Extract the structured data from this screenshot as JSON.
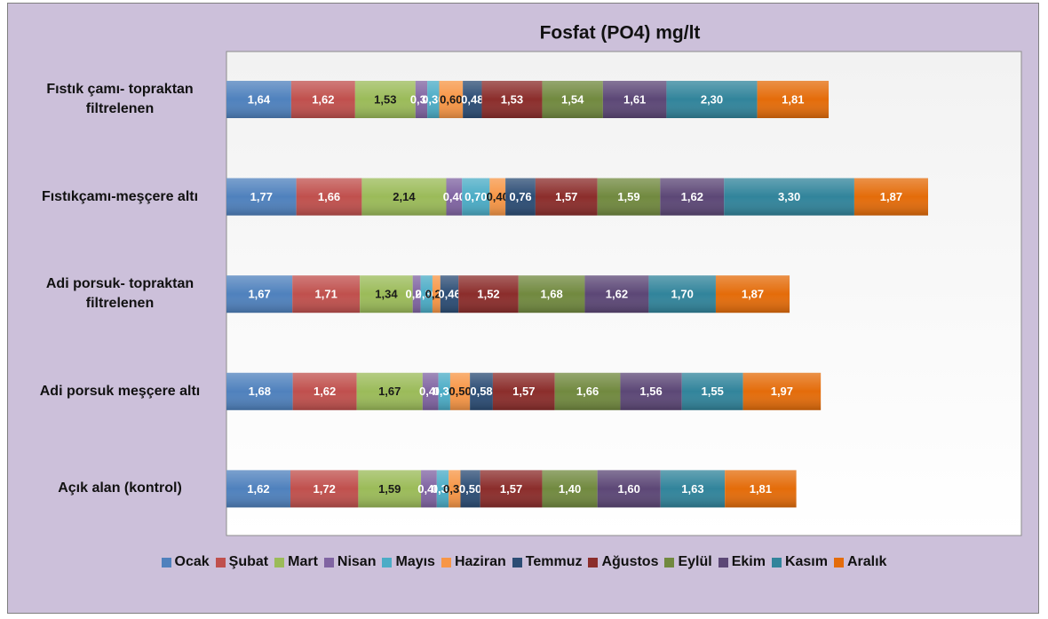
{
  "chart_data": {
    "type": "stacked-barh",
    "title": "Fosfat (PO4) mg/lt",
    "categories": [
      "Fıstık çamı- topraktan filtrelenen",
      "Fıstıkçamı-meşçere altı",
      "Adi porsuk- topraktan filtrelenen",
      "Adi porsuk meşçere altı",
      "Açık alan (kontrol)"
    ],
    "series": [
      {
        "name": "Ocak",
        "color": "#4f81bd",
        "values": [
          1.64,
          1.77,
          1.67,
          1.68,
          1.62
        ],
        "value_labels": [
          "1,64",
          "1,77",
          "1,67",
          "1,68",
          "1,62"
        ]
      },
      {
        "name": "Şubat",
        "color": "#c0504d",
        "values": [
          1.62,
          1.66,
          1.71,
          1.62,
          1.72
        ],
        "value_labels": [
          "1,62",
          "1,66",
          "1,71",
          "1,62",
          "1,72"
        ]
      },
      {
        "name": "Mart",
        "color": "#9bbb59",
        "values": [
          1.53,
          2.14,
          1.34,
          1.67,
          1.59
        ],
        "value_labels": [
          "1,53",
          "2,14",
          "1,34",
          "1,67",
          "1,59"
        ]
      },
      {
        "name": "Nisan",
        "color": "#8064a2",
        "values": [
          0.3,
          0.4,
          0.2,
          0.4,
          0.4
        ],
        "value_labels": [
          "0,30",
          "0,40",
          "0,20",
          "0,40",
          "0,40"
        ]
      },
      {
        "name": "Mayıs",
        "color": "#4bacc6",
        "values": [
          0.3,
          0.7,
          0.3,
          0.3,
          0.3
        ],
        "value_labels": [
          "0,30",
          "0,70",
          "0,30",
          "0,30",
          "0,30"
        ]
      },
      {
        "name": "Haziran",
        "color": "#f79646",
        "values": [
          0.6,
          0.4,
          0.2,
          0.5,
          0.3
        ],
        "value_labels": [
          "0,60",
          "0,40",
          "0,20",
          "0,50",
          "0,30"
        ]
      },
      {
        "name": "Temmuz",
        "color": "#2c4d75",
        "values": [
          0.48,
          0.76,
          0.46,
          0.58,
          0.5
        ],
        "value_labels": [
          "0,48",
          "0,76",
          "0,46",
          "0,58",
          "0,50"
        ]
      },
      {
        "name": "Ağustos",
        "color": "#8b2d2b",
        "values": [
          1.53,
          1.57,
          1.52,
          1.57,
          1.57
        ],
        "value_labels": [
          "1,53",
          "1,57",
          "1,52",
          "1,57",
          "1,57"
        ]
      },
      {
        "name": "Eylül",
        "color": "#71893f",
        "values": [
          1.54,
          1.59,
          1.68,
          1.66,
          1.4
        ],
        "value_labels": [
          "1,54",
          "1,59",
          "1,68",
          "1,66",
          "1,40"
        ]
      },
      {
        "name": "Ekim",
        "color": "#5c4776",
        "values": [
          1.61,
          1.62,
          1.62,
          1.56,
          1.6
        ],
        "value_labels": [
          "1,61",
          "1,62",
          "1,62",
          "1,56",
          "1,60"
        ]
      },
      {
        "name": "Kasım",
        "color": "#31849b",
        "values": [
          2.3,
          3.3,
          1.7,
          1.55,
          1.63
        ],
        "value_labels": [
          "2,30",
          "3,30",
          "1,70",
          "1,55",
          "1,63"
        ]
      },
      {
        "name": "Aralık",
        "color": "#e46c0a",
        "values": [
          1.81,
          1.87,
          1.87,
          1.97,
          1.81
        ],
        "value_labels": [
          "1,81",
          "1,87",
          "1,87",
          "1,97",
          "1,81"
        ]
      }
    ]
  }
}
